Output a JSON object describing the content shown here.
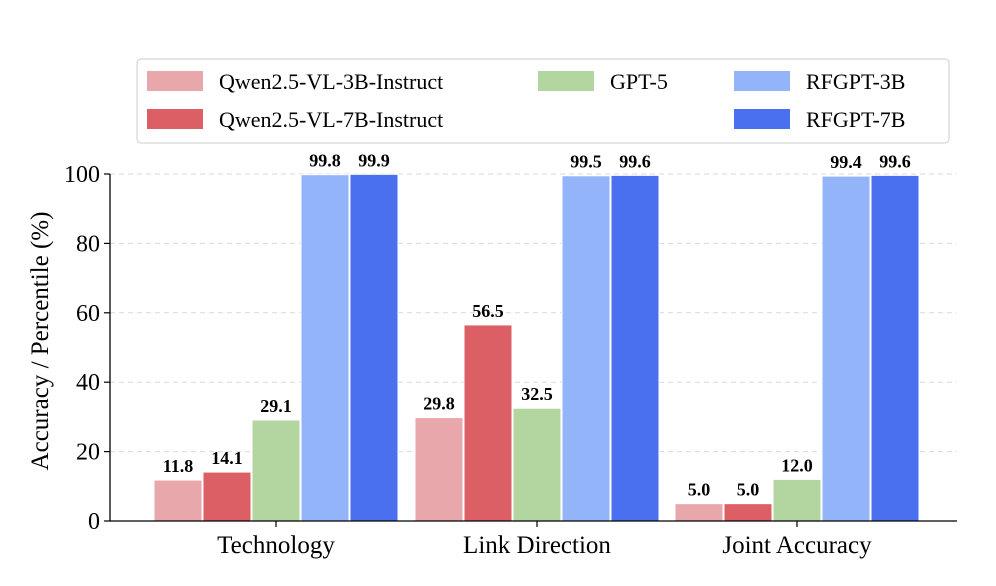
{
  "chart_data": {
    "type": "bar",
    "title": "",
    "xlabel": "",
    "ylabel": "Accuracy / Percentile (%)",
    "ylim": [
      0,
      100
    ],
    "yticks": [
      0,
      20,
      40,
      60,
      80,
      100
    ],
    "grid": "horizontal dashed",
    "legend_position": "top",
    "categories": [
      "Technology",
      "Link Direction",
      "Joint Accuracy"
    ],
    "series": [
      {
        "name": "Qwen2.5-VL-3B-Instruct",
        "color": "#E8A7AA",
        "values": [
          11.8,
          29.8,
          5.0
        ],
        "labels": [
          "11.8",
          "29.8",
          "5.0"
        ]
      },
      {
        "name": "Qwen2.5-VL-7B-Instruct",
        "color": "#DC5F65",
        "values": [
          14.1,
          56.5,
          5.0
        ],
        "labels": [
          "14.1",
          "56.5",
          "5.0"
        ]
      },
      {
        "name": "GPT-5",
        "color": "#B3D5A0",
        "values": [
          29.1,
          32.5,
          12.0
        ],
        "labels": [
          "29.1",
          "32.5",
          "12.0"
        ]
      },
      {
        "name": "RFGPT-3B",
        "color": "#94B4FA",
        "values": [
          99.8,
          99.5,
          99.4
        ],
        "labels": [
          "99.8",
          "99.5",
          "99.4"
        ]
      },
      {
        "name": "RFGPT-7B",
        "color": "#4A70F0",
        "values": [
          99.9,
          99.6,
          99.6
        ],
        "labels": [
          "99.9",
          "99.6",
          "99.6"
        ]
      }
    ]
  }
}
